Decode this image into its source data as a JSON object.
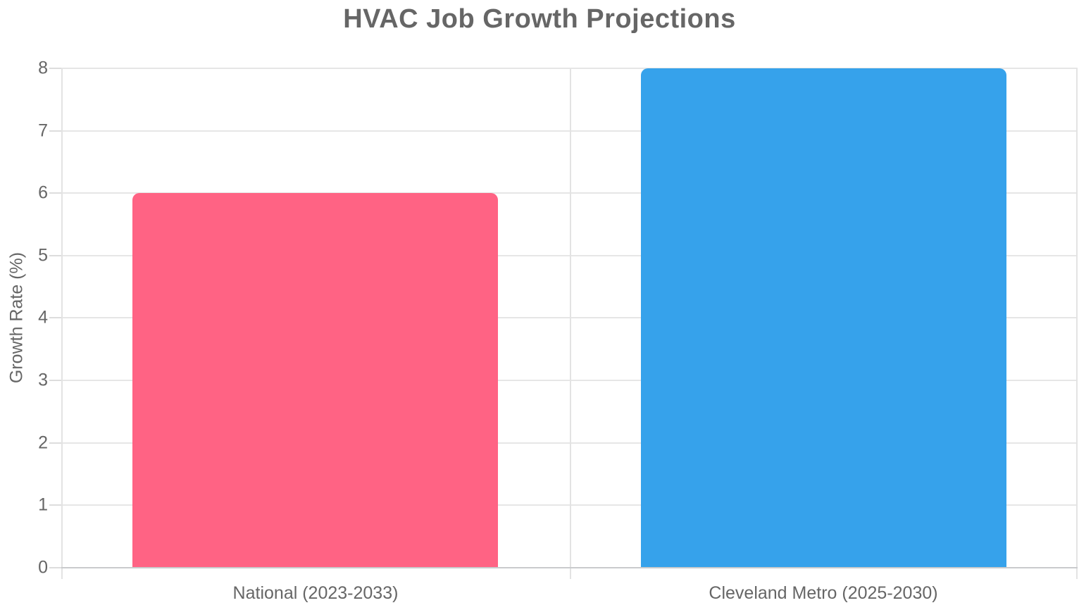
{
  "chart_data": {
    "type": "bar",
    "title": "HVAC Job Growth Projections",
    "xlabel": "",
    "ylabel": "Growth Rate (%)",
    "categories": [
      "National (2023-2033)",
      "Cleveland Metro (2025-2030)"
    ],
    "values": [
      6,
      8
    ],
    "bar_colors": [
      "#FF6384",
      "#36A2EB"
    ],
    "ylim": [
      0,
      8
    ],
    "yticks": [
      0,
      1,
      2,
      3,
      4,
      5,
      6,
      7,
      8
    ],
    "grid": true,
    "legend": "none",
    "colors": {
      "title_text": "#666666",
      "tick_text": "#666666",
      "gridline": "#e6e6e6",
      "axis_line": "#c9cbcd",
      "background": "#ffffff"
    }
  }
}
